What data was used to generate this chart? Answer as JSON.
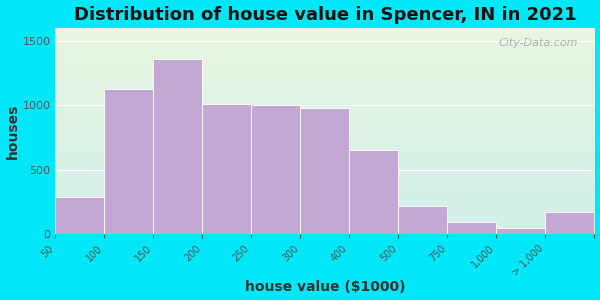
{
  "title": "Distribution of house value in Spencer, IN in 2021",
  "xlabel": "house value ($1000)",
  "ylabel": "houses",
  "tick_labels": [
    "50",
    "100",
    "150",
    "200",
    "250",
    "300",
    "400",
    "500",
    "750",
    "1,000",
    "> 1,000"
  ],
  "bin_edges": [
    50,
    100,
    150,
    200,
    250,
    300,
    400,
    500,
    750,
    1000,
    1100,
    1300
  ],
  "bar_values": [
    290,
    1125,
    1360,
    1010,
    1000,
    975,
    650,
    215,
    90,
    50,
    175
  ],
  "bar_color": "#c4a8d4",
  "bar_edge_color": "#ffffff",
  "ylim": [
    0,
    1600
  ],
  "yticks": [
    0,
    500,
    1000,
    1500
  ],
  "background_outer": "#00e8f8",
  "background_inner_top": "#e8f5e0",
  "background_inner_bottom": "#d0f0e8",
  "title_fontsize": 13,
  "axis_label_fontsize": 10,
  "tick_fontsize": 7,
  "watermark": "City-Data.com"
}
